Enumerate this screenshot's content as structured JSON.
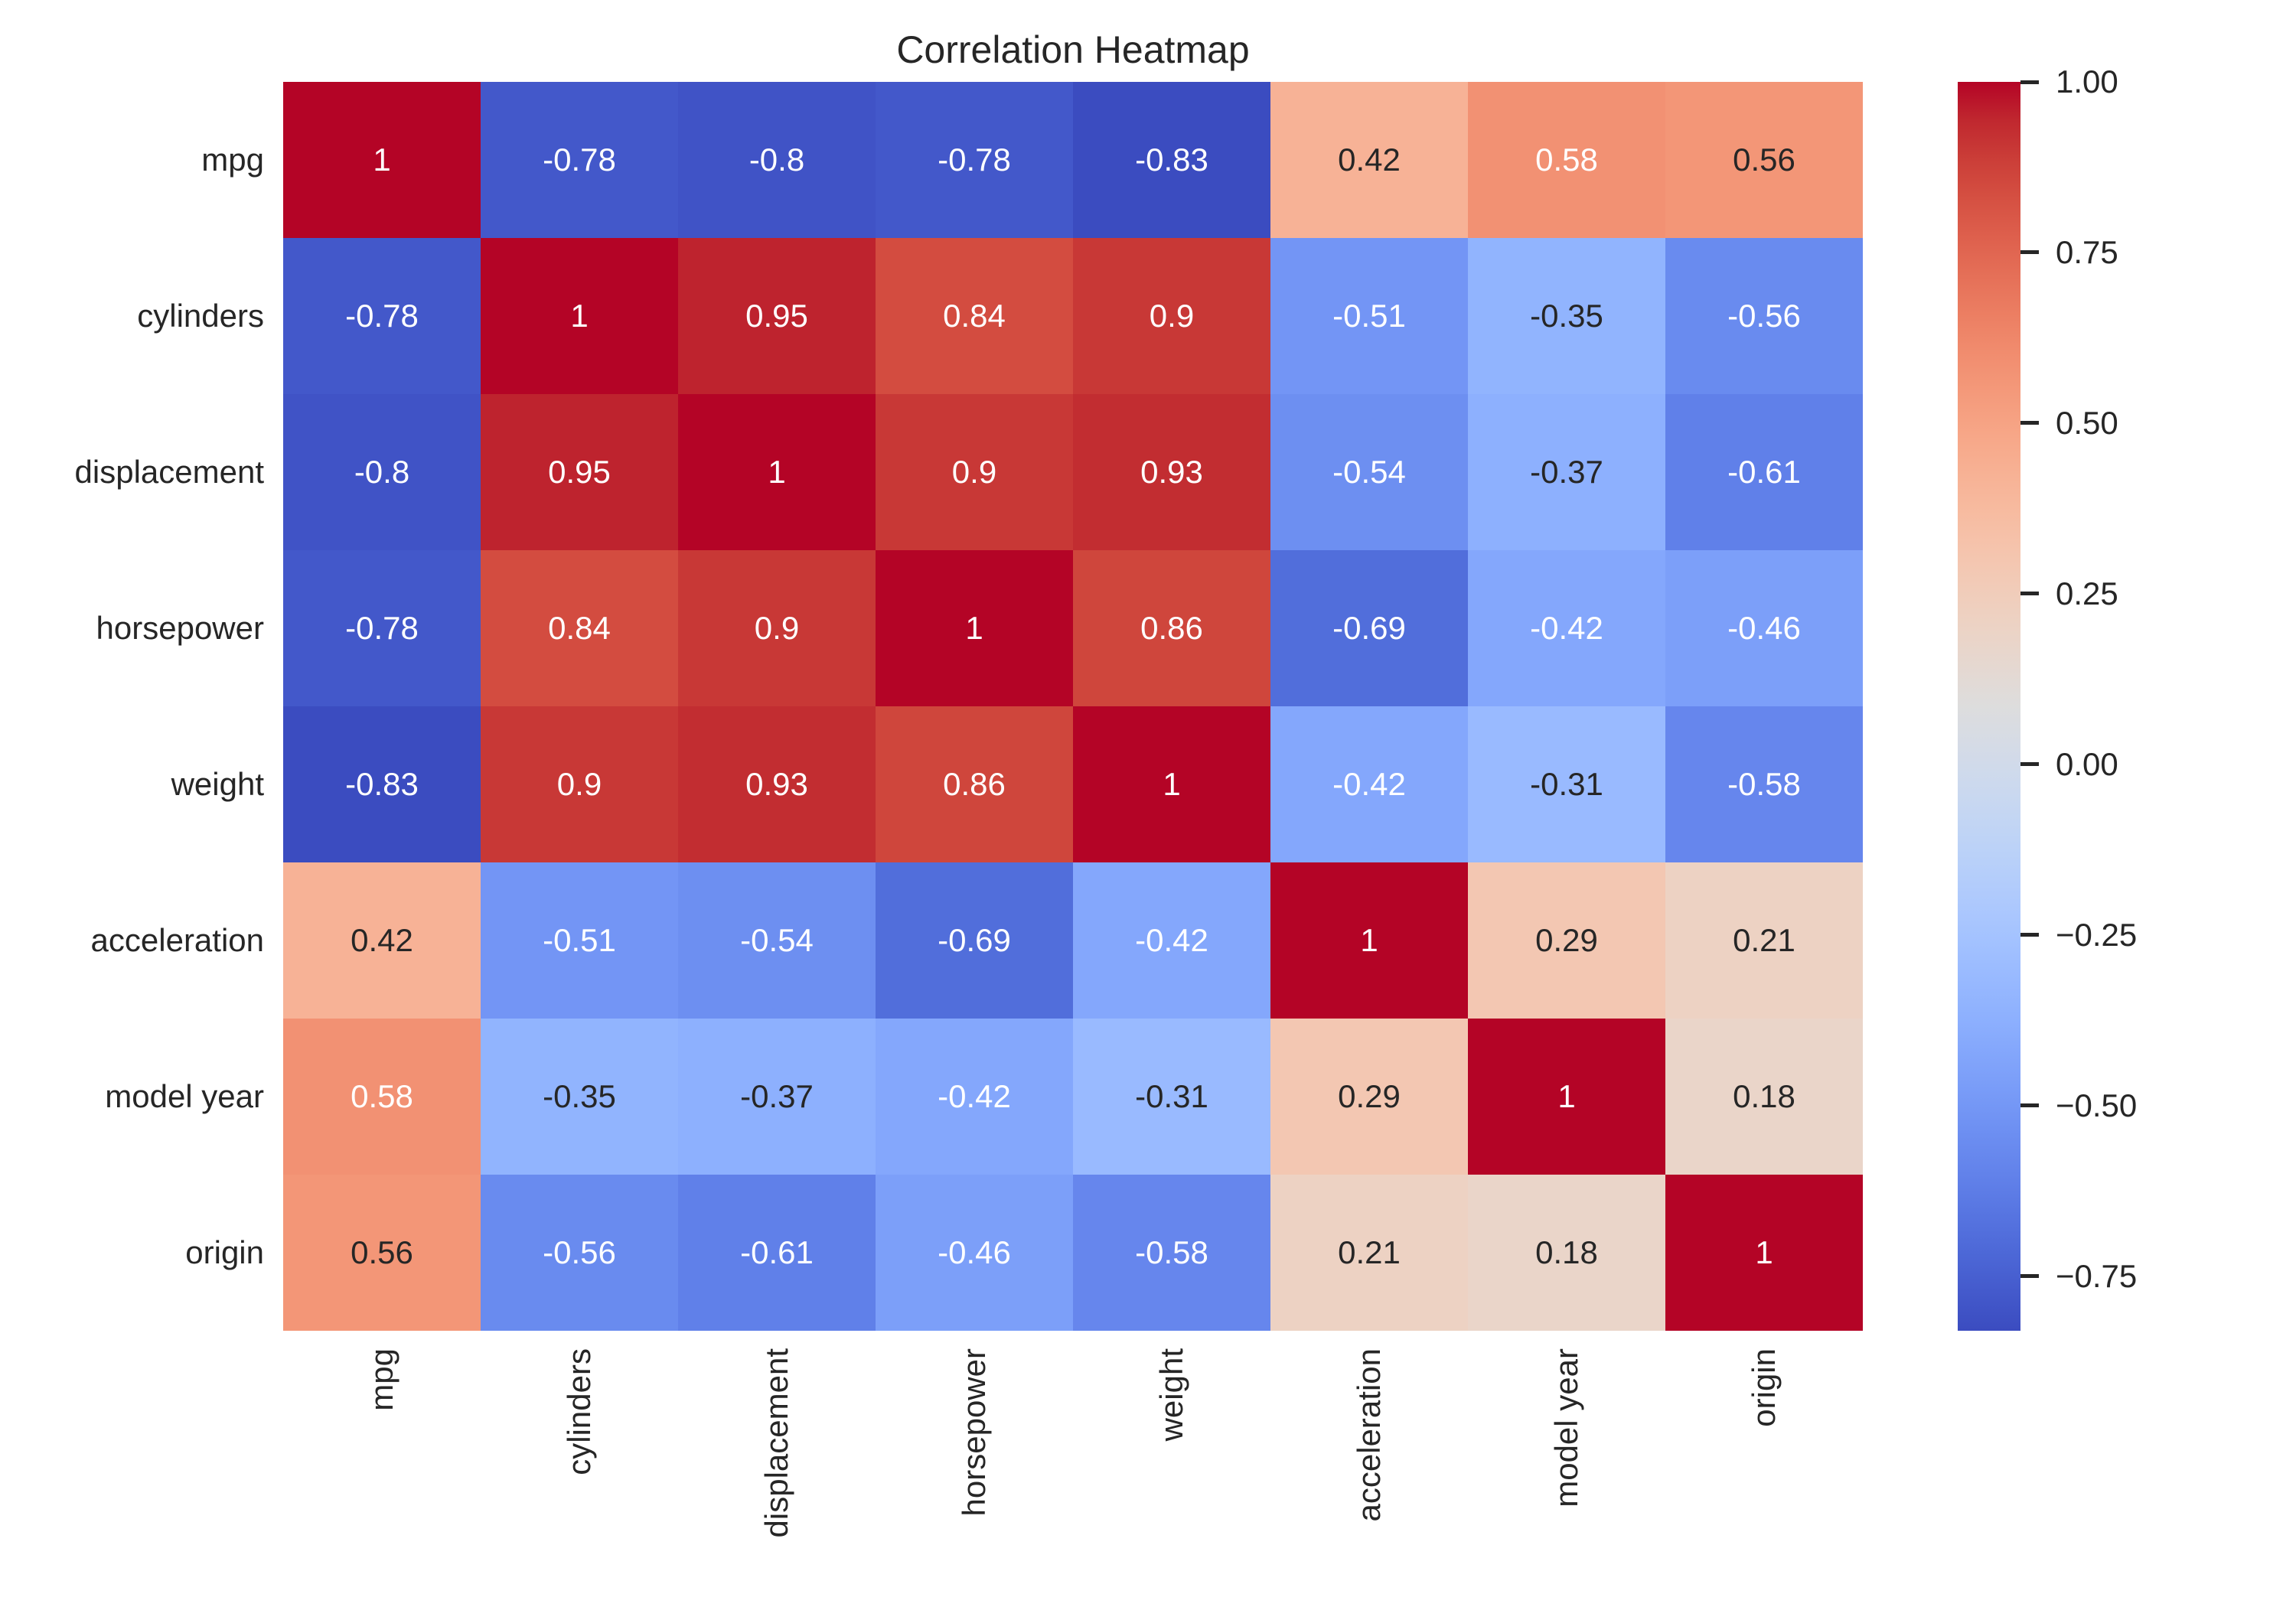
{
  "title": "Correlation Heatmap",
  "chart_data": {
    "type": "heatmap",
    "title": "Correlation Heatmap",
    "categories": [
      "mpg",
      "cylinders",
      "displacement",
      "horsepower",
      "weight",
      "acceleration",
      "model year",
      "origin"
    ],
    "matrix": [
      [
        1,
        -0.78,
        -0.8,
        -0.78,
        -0.83,
        0.42,
        0.58,
        0.56
      ],
      [
        -0.78,
        1,
        0.95,
        0.84,
        0.9,
        -0.51,
        -0.35,
        -0.56
      ],
      [
        -0.8,
        0.95,
        1,
        0.9,
        0.93,
        -0.54,
        -0.37,
        -0.61
      ],
      [
        -0.78,
        0.84,
        0.9,
        1,
        0.86,
        -0.69,
        -0.42,
        -0.46
      ],
      [
        -0.83,
        0.9,
        0.93,
        0.86,
        1,
        -0.42,
        -0.31,
        -0.58
      ],
      [
        0.42,
        -0.51,
        -0.54,
        -0.69,
        -0.42,
        1,
        0.29,
        0.21
      ],
      [
        0.58,
        -0.35,
        -0.37,
        -0.42,
        -0.31,
        0.29,
        1,
        0.18
      ],
      [
        0.56,
        -0.56,
        -0.61,
        -0.46,
        -0.58,
        0.21,
        0.18,
        1
      ]
    ],
    "colormap": "coolwarm",
    "vmin": -0.83,
    "vmax": 1,
    "annotated": true,
    "grid": false,
    "colorbar": {
      "position": "right",
      "tick_labels": [
        "1.00",
        "0.75",
        "0.50",
        "0.25",
        "0.00",
        "−0.25",
        "−0.50",
        "−0.75"
      ],
      "tick_values": [
        1,
        0.75,
        0.5,
        0.25,
        0,
        -0.25,
        -0.5,
        -0.75
      ]
    }
  },
  "colors": {
    "background": "#ffffff",
    "text": "#262626",
    "annotation_dark": "#262626",
    "annotation_light": "#ffffff"
  }
}
